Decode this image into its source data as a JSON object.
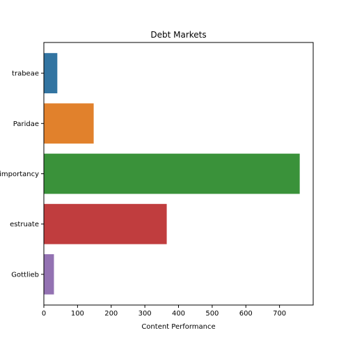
{
  "chart_data": {
    "type": "bar",
    "orientation": "horizontal",
    "title": "Debt Markets",
    "xlabel": "Content Performance",
    "ylabel": "",
    "categories": [
      "trabeae",
      "Paridae",
      "importancy",
      "estruate",
      "Gottlieb"
    ],
    "values": [
      40,
      148,
      760,
      365,
      30
    ],
    "colors": [
      "#3274a1",
      "#e1812c",
      "#3a923a",
      "#c03d3e",
      "#9372b2"
    ],
    "xlim": [
      0,
      800
    ],
    "xticks": [
      0,
      100,
      200,
      300,
      400,
      500,
      600,
      700
    ],
    "grid": false,
    "legend": "none"
  }
}
